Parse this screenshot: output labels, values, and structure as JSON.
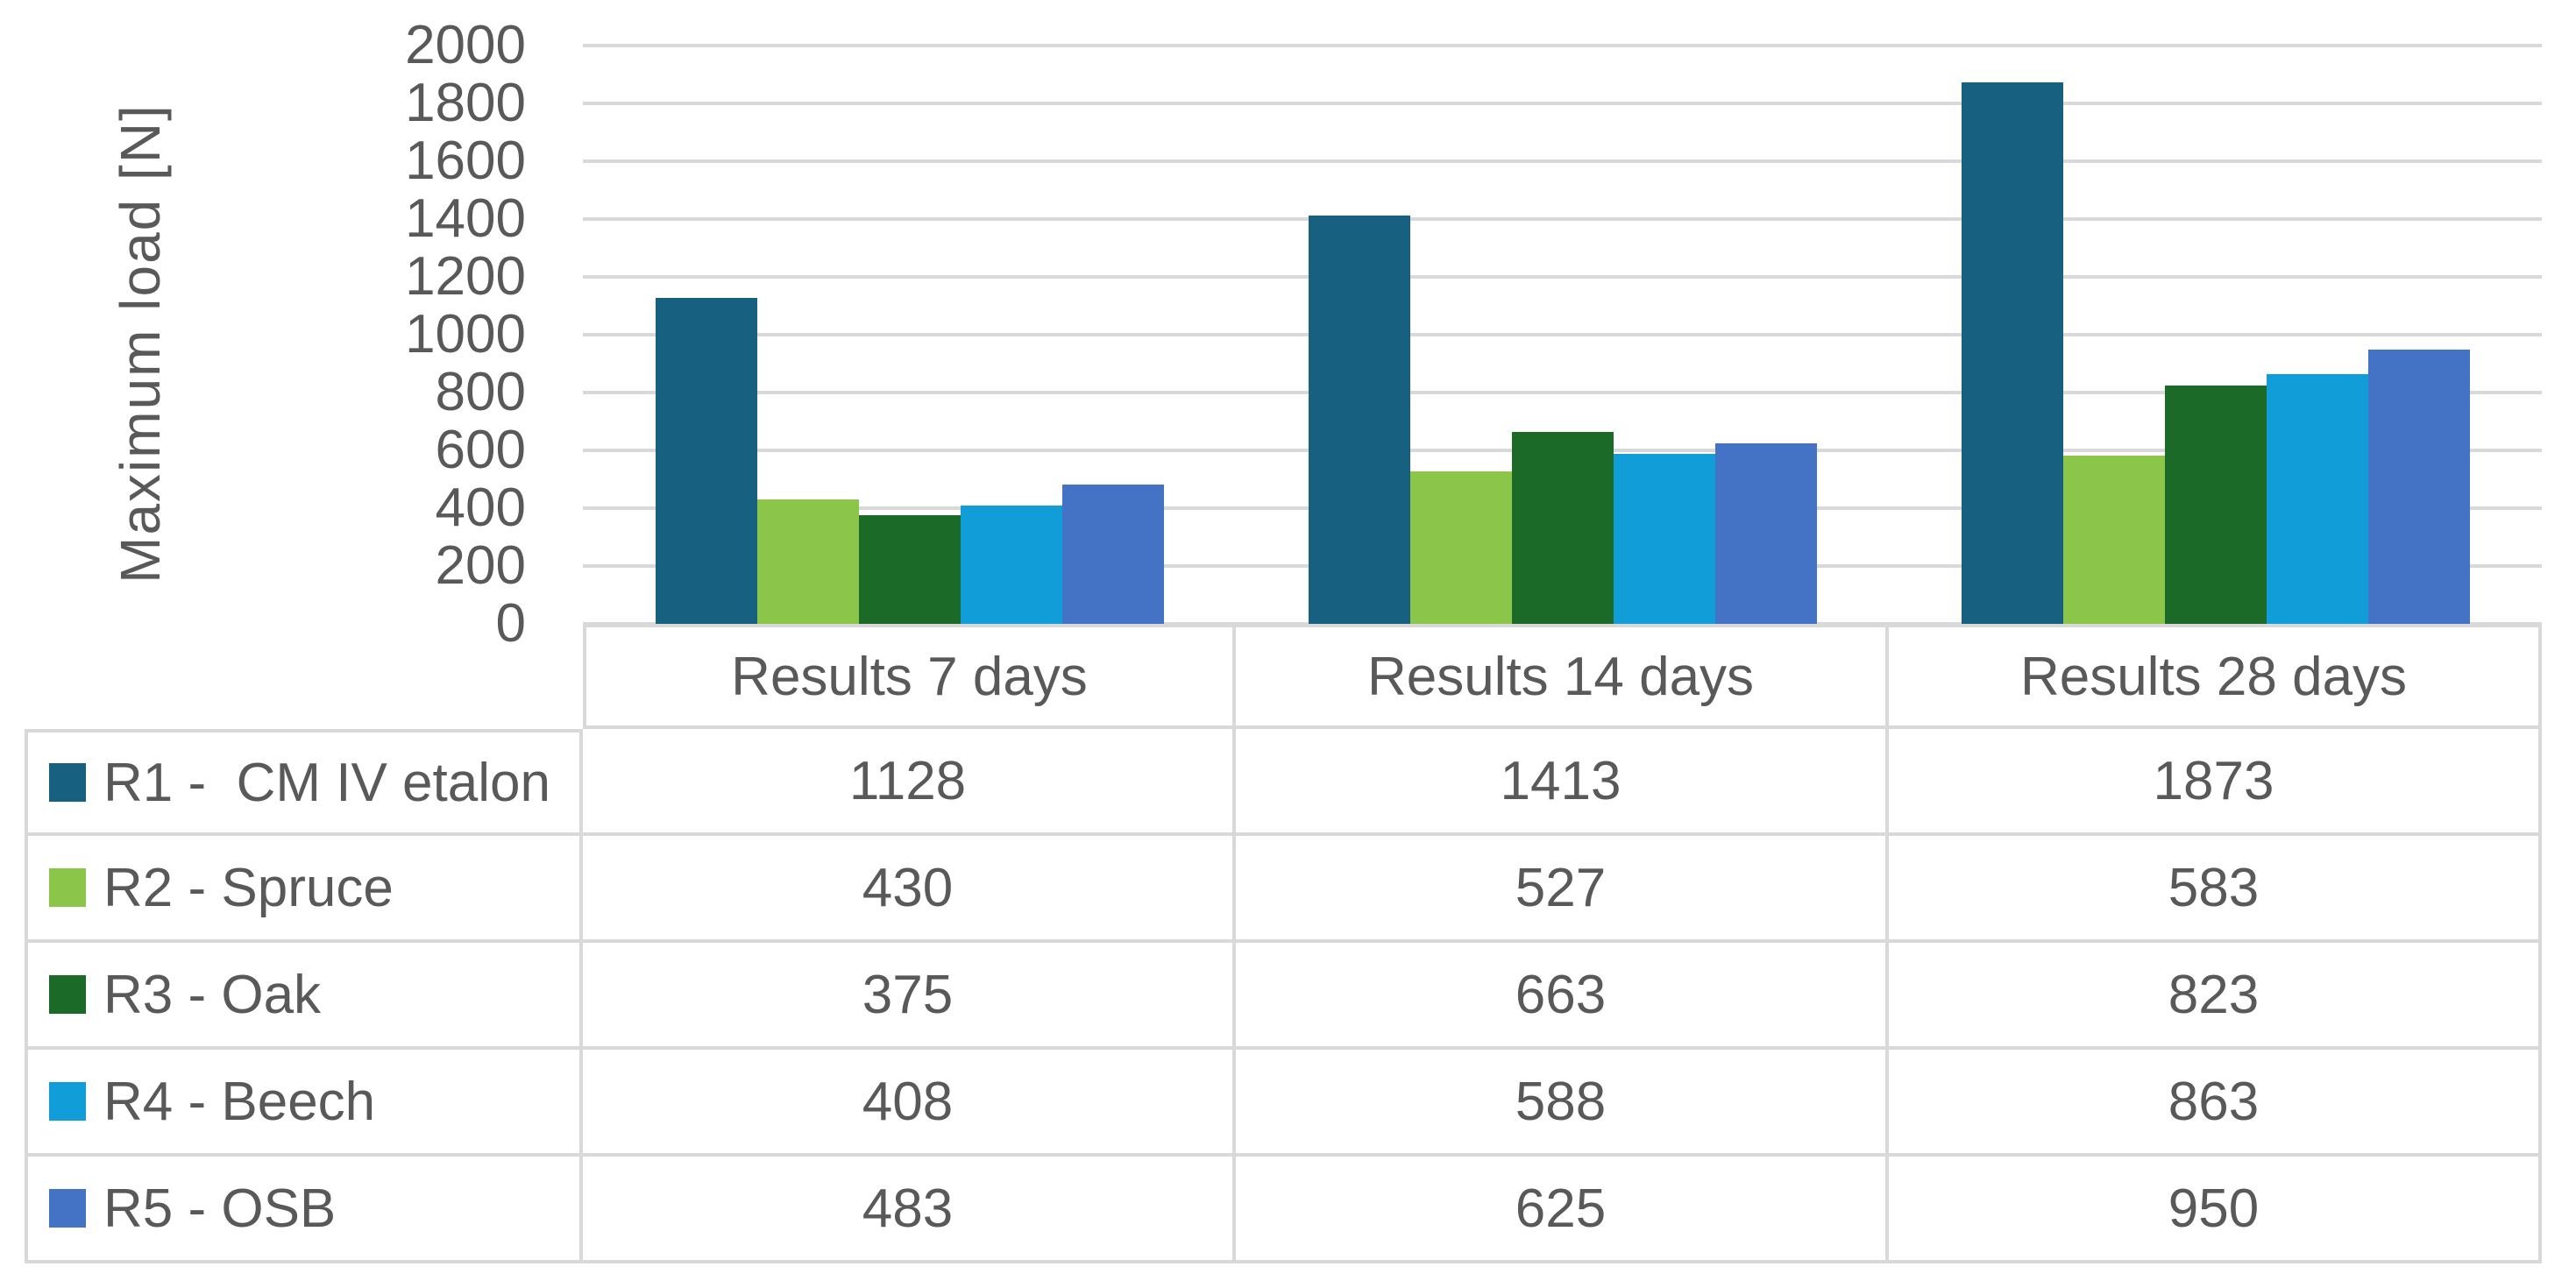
{
  "colors": {
    "background": "#FFFFFF",
    "gridline": "#D9D9D9",
    "table_border": "#D9D9D9",
    "text": "#595959"
  },
  "chart_data": {
    "type": "bar",
    "title": "",
    "xlabel": "",
    "ylabel": "Maximum load [N]",
    "ylim": [
      0,
      2000
    ],
    "ytick_step": 200,
    "yticks": [
      0,
      200,
      400,
      600,
      800,
      1000,
      1200,
      1400,
      1600,
      1800,
      2000
    ],
    "grid": "horizontal",
    "legend_position": "data-table-left-column",
    "has_data_table": true,
    "categories": [
      "Results 7 days",
      "Results 14 days",
      "Results 28 days"
    ],
    "series": [
      {
        "name": "R1 -  CM IV etalon",
        "color": "#18607F",
        "values": [
          1128,
          1413,
          1873
        ]
      },
      {
        "name": "R2 - Spruce",
        "color": "#8BC64A",
        "values": [
          430,
          527,
          583
        ]
      },
      {
        "name": "R3 - Oak",
        "color": "#1B6A28",
        "values": [
          375,
          663,
          823
        ]
      },
      {
        "name": "R4 - Beech",
        "color": "#119ED8",
        "values": [
          408,
          588,
          863
        ]
      },
      {
        "name": "R5 - OSB",
        "color": "#4472C4",
        "values": [
          483,
          625,
          950
        ]
      }
    ]
  }
}
